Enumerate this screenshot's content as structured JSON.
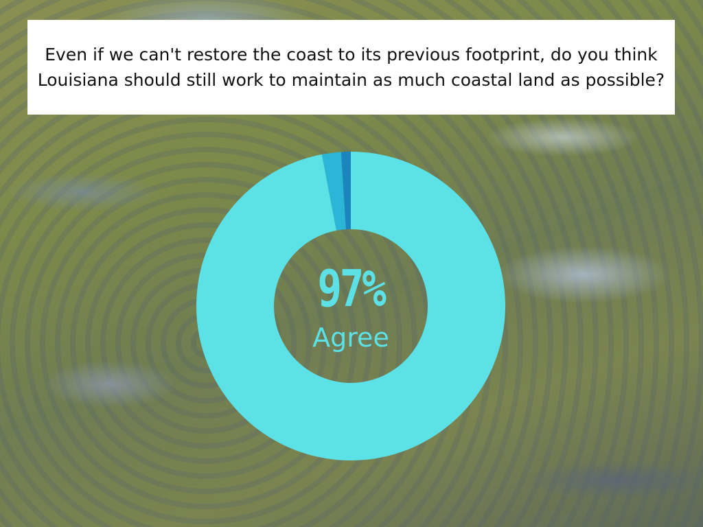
{
  "title": "Even if we can't restore the coast to its previous footprint, do you think Louisiana should still work to maintain as much coastal land as possible?",
  "chart_data": {
    "type": "pie",
    "donut": true,
    "center_value": "97%",
    "center_label": "Agree",
    "slices": [
      {
        "name": "Agree",
        "value": 97,
        "color": "#5ce1e6"
      },
      {
        "value": 2,
        "color": "#2bb5d6"
      },
      {
        "value": 1,
        "color": "#1a86bd"
      }
    ]
  }
}
